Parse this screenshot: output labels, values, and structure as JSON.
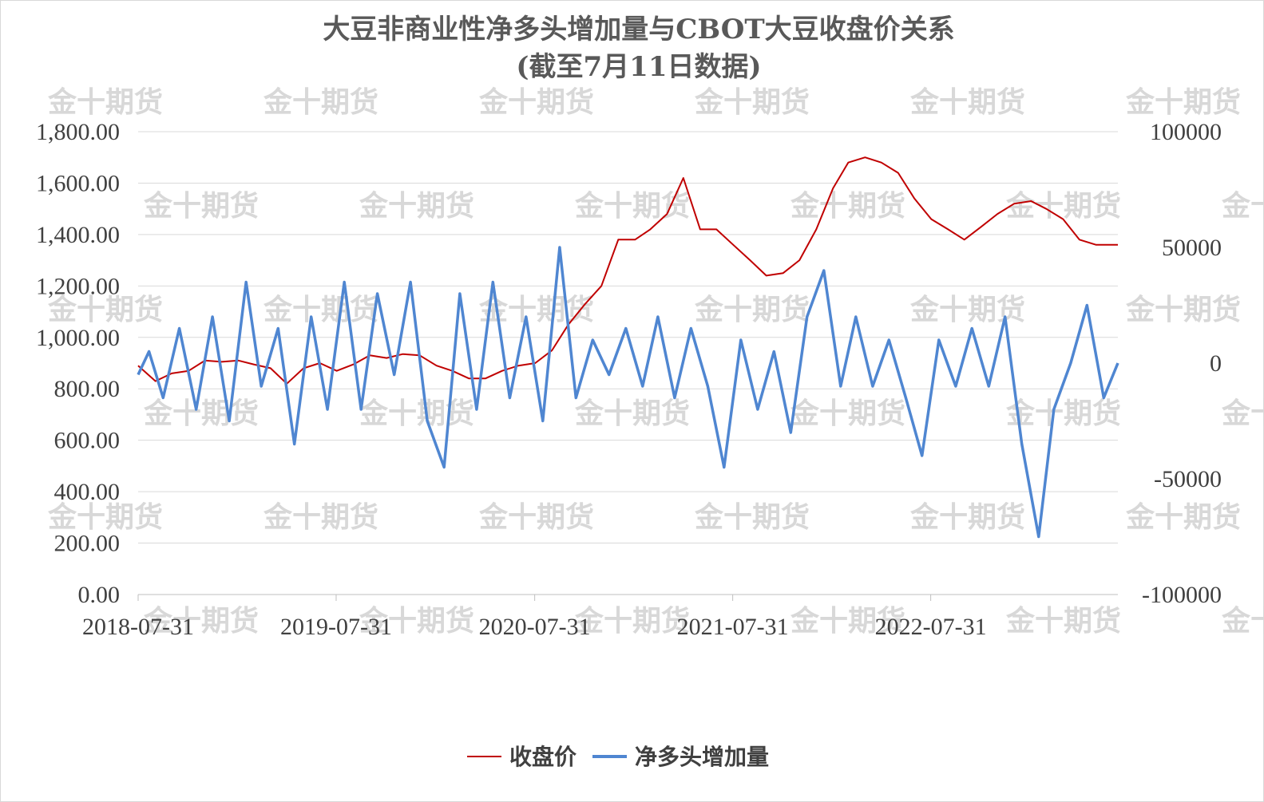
{
  "chart_data": {
    "type": "line",
    "title": "大豆非商业性净多头增加量与CBOT大豆收盘价关系",
    "subtitle": "(截至7月11日数据)",
    "x_tick_labels": [
      "2018-07-31",
      "2019-07-31",
      "2020-07-31",
      "2021-07-31",
      "2022-07-31"
    ],
    "x_range": [
      "2018-07-31",
      "2023-07-11"
    ],
    "y_left": {
      "min": 0,
      "max": 1800,
      "step": 200,
      "tick_labels": [
        "0.00",
        "200.00",
        "400.00",
        "600.00",
        "800.00",
        "1,000.00",
        "1,200.00",
        "1,400.00",
        "1,600.00",
        "1,800.00"
      ]
    },
    "y_right": {
      "min": -100000,
      "max": 100000,
      "step": 50000,
      "tick_labels": [
        "-100000",
        "-50000",
        "0",
        "50000",
        "100000"
      ]
    },
    "grid": true,
    "legend_position": "bottom",
    "watermark": "金十期货",
    "series": [
      {
        "name": "收盘价",
        "axis": "left",
        "color": "#c00000",
        "points": [
          [
            "2018-07-31",
            890
          ],
          [
            "2018-09-01",
            830
          ],
          [
            "2018-10-01",
            860
          ],
          [
            "2018-11-01",
            870
          ],
          [
            "2018-12-01",
            910
          ],
          [
            "2019-01-01",
            905
          ],
          [
            "2019-02-01",
            910
          ],
          [
            "2019-03-01",
            895
          ],
          [
            "2019-04-01",
            880
          ],
          [
            "2019-05-01",
            820
          ],
          [
            "2019-06-01",
            880
          ],
          [
            "2019-07-01",
            900
          ],
          [
            "2019-08-01",
            870
          ],
          [
            "2019-09-01",
            895
          ],
          [
            "2019-10-01",
            930
          ],
          [
            "2019-11-01",
            920
          ],
          [
            "2019-12-01",
            935
          ],
          [
            "2020-01-01",
            930
          ],
          [
            "2020-02-01",
            890
          ],
          [
            "2020-03-01",
            870
          ],
          [
            "2020-04-01",
            840
          ],
          [
            "2020-05-01",
            840
          ],
          [
            "2020-06-01",
            870
          ],
          [
            "2020-07-01",
            890
          ],
          [
            "2020-08-01",
            900
          ],
          [
            "2020-09-01",
            950
          ],
          [
            "2020-10-01",
            1050
          ],
          [
            "2020-11-01",
            1130
          ],
          [
            "2020-12-01",
            1200
          ],
          [
            "2021-01-01",
            1380
          ],
          [
            "2021-02-01",
            1380
          ],
          [
            "2021-03-01",
            1420
          ],
          [
            "2021-04-01",
            1480
          ],
          [
            "2021-05-01",
            1620
          ],
          [
            "2021-06-01",
            1420
          ],
          [
            "2021-07-01",
            1420
          ],
          [
            "2021-08-01",
            1360
          ],
          [
            "2021-09-01",
            1300
          ],
          [
            "2021-10-01",
            1240
          ],
          [
            "2021-11-01",
            1250
          ],
          [
            "2021-12-01",
            1300
          ],
          [
            "2022-01-01",
            1420
          ],
          [
            "2022-02-01",
            1580
          ],
          [
            "2022-03-01",
            1680
          ],
          [
            "2022-04-01",
            1700
          ],
          [
            "2022-05-01",
            1680
          ],
          [
            "2022-06-01",
            1640
          ],
          [
            "2022-07-01",
            1540
          ],
          [
            "2022-08-01",
            1460
          ],
          [
            "2022-09-01",
            1420
          ],
          [
            "2022-10-01",
            1380
          ],
          [
            "2022-11-01",
            1430
          ],
          [
            "2022-12-01",
            1480
          ],
          [
            "2023-01-01",
            1520
          ],
          [
            "2023-02-01",
            1530
          ],
          [
            "2023-03-01",
            1500
          ],
          [
            "2023-04-01",
            1460
          ],
          [
            "2023-05-01",
            1380
          ],
          [
            "2023-06-01",
            1360
          ],
          [
            "2023-07-11",
            1360
          ]
        ]
      },
      {
        "name": "净多头增加量",
        "axis": "right",
        "color": "#4f86d1",
        "points": [
          [
            "2018-07-31",
            -5000
          ],
          [
            "2018-08-20",
            5000
          ],
          [
            "2018-09-15",
            -15000
          ],
          [
            "2018-10-15",
            15000
          ],
          [
            "2018-11-15",
            -20000
          ],
          [
            "2018-12-15",
            20000
          ],
          [
            "2019-01-15",
            -25000
          ],
          [
            "2019-02-15",
            35000
          ],
          [
            "2019-03-15",
            -10000
          ],
          [
            "2019-04-15",
            15000
          ],
          [
            "2019-05-15",
            -35000
          ],
          [
            "2019-06-15",
            20000
          ],
          [
            "2019-07-15",
            -20000
          ],
          [
            "2019-08-15",
            35000
          ],
          [
            "2019-09-15",
            -20000
          ],
          [
            "2019-10-15",
            30000
          ],
          [
            "2019-11-15",
            -5000
          ],
          [
            "2019-12-15",
            35000
          ],
          [
            "2020-01-15",
            -25000
          ],
          [
            "2020-02-15",
            -45000
          ],
          [
            "2020-03-15",
            30000
          ],
          [
            "2020-04-15",
            -20000
          ],
          [
            "2020-05-15",
            35000
          ],
          [
            "2020-06-15",
            -15000
          ],
          [
            "2020-07-15",
            20000
          ],
          [
            "2020-08-15",
            -25000
          ],
          [
            "2020-09-15",
            50000
          ],
          [
            "2020-10-15",
            -15000
          ],
          [
            "2020-11-15",
            10000
          ],
          [
            "2020-12-15",
            -5000
          ],
          [
            "2021-01-15",
            15000
          ],
          [
            "2021-02-15",
            -10000
          ],
          [
            "2021-03-15",
            20000
          ],
          [
            "2021-04-15",
            -15000
          ],
          [
            "2021-05-15",
            15000
          ],
          [
            "2021-06-15",
            -10000
          ],
          [
            "2021-07-15",
            -45000
          ],
          [
            "2021-08-15",
            10000
          ],
          [
            "2021-09-15",
            -20000
          ],
          [
            "2021-10-15",
            5000
          ],
          [
            "2021-11-15",
            -30000
          ],
          [
            "2021-12-15",
            20000
          ],
          [
            "2022-01-15",
            40000
          ],
          [
            "2022-02-15",
            -10000
          ],
          [
            "2022-03-15",
            20000
          ],
          [
            "2022-04-15",
            -10000
          ],
          [
            "2022-05-15",
            10000
          ],
          [
            "2022-06-15",
            -15000
          ],
          [
            "2022-07-15",
            -40000
          ],
          [
            "2022-08-15",
            10000
          ],
          [
            "2022-09-15",
            -10000
          ],
          [
            "2022-10-15",
            15000
          ],
          [
            "2022-11-15",
            -10000
          ],
          [
            "2022-12-15",
            20000
          ],
          [
            "2023-01-15",
            -35000
          ],
          [
            "2023-02-15",
            -75000
          ],
          [
            "2023-03-15",
            -20000
          ],
          [
            "2023-04-15",
            0
          ],
          [
            "2023-05-15",
            25000
          ],
          [
            "2023-06-15",
            -15000
          ],
          [
            "2023-07-11",
            0
          ]
        ]
      }
    ]
  }
}
